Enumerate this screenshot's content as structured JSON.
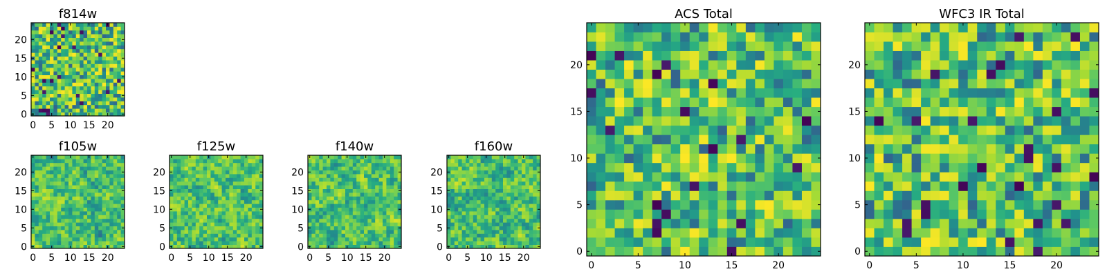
{
  "chart_data": [
    {
      "type": "heatmap",
      "title": "f814w",
      "colormap": "viridis",
      "grid": false,
      "nx": 25,
      "ny": 25,
      "xlim": [
        -0.5,
        24.5
      ],
      "ylim": [
        -0.5,
        24.5
      ],
      "xticks": [
        0,
        5,
        10,
        15,
        20
      ],
      "yticks": [
        0,
        5,
        10,
        15,
        20
      ],
      "xlabel": "",
      "ylabel": ""
    },
    {
      "type": "heatmap",
      "title": "f105w",
      "colormap": "viridis",
      "grid": false,
      "nx": 25,
      "ny": 25,
      "xlim": [
        -0.5,
        24.5
      ],
      "ylim": [
        -0.5,
        24.5
      ],
      "xticks": [
        0,
        5,
        10,
        15,
        20
      ],
      "yticks": [
        0,
        5,
        10,
        15,
        20
      ],
      "xlabel": "",
      "ylabel": ""
    },
    {
      "type": "heatmap",
      "title": "f125w",
      "colormap": "viridis",
      "grid": false,
      "nx": 25,
      "ny": 25,
      "xlim": [
        -0.5,
        24.5
      ],
      "ylim": [
        -0.5,
        24.5
      ],
      "xticks": [
        0,
        5,
        10,
        15,
        20
      ],
      "yticks": [
        0,
        5,
        10,
        15,
        20
      ],
      "xlabel": "",
      "ylabel": ""
    },
    {
      "type": "heatmap",
      "title": "f140w",
      "colormap": "viridis",
      "grid": false,
      "nx": 25,
      "ny": 25,
      "xlim": [
        -0.5,
        24.5
      ],
      "ylim": [
        -0.5,
        24.5
      ],
      "xticks": [
        0,
        5,
        10,
        15,
        20
      ],
      "yticks": [
        0,
        5,
        10,
        15,
        20
      ],
      "xlabel": "",
      "ylabel": ""
    },
    {
      "type": "heatmap",
      "title": "f160w",
      "colormap": "viridis",
      "grid": false,
      "nx": 25,
      "ny": 25,
      "xlim": [
        -0.5,
        24.5
      ],
      "ylim": [
        -0.5,
        24.5
      ],
      "xticks": [
        0,
        5,
        10,
        15,
        20
      ],
      "yticks": [
        0,
        5,
        10,
        15,
        20
      ],
      "xlabel": "",
      "ylabel": ""
    },
    {
      "type": "heatmap",
      "title": "ACS Total",
      "colormap": "viridis",
      "grid": false,
      "nx": 25,
      "ny": 25,
      "xlim": [
        -0.5,
        24.5
      ],
      "ylim": [
        -0.5,
        24.5
      ],
      "xticks": [
        0,
        5,
        10,
        15,
        20
      ],
      "yticks": [
        0,
        5,
        10,
        15,
        20
      ],
      "xlabel": "",
      "ylabel": ""
    },
    {
      "type": "heatmap",
      "title": "WFC3 IR Total",
      "colormap": "viridis",
      "grid": false,
      "nx": 25,
      "ny": 25,
      "xlim": [
        -0.5,
        24.5
      ],
      "ylim": [
        -0.5,
        24.5
      ],
      "xticks": [
        0,
        5,
        10,
        15,
        20
      ],
      "yticks": [
        0,
        5,
        10,
        15,
        20
      ],
      "xlabel": "",
      "ylabel": ""
    }
  ]
}
